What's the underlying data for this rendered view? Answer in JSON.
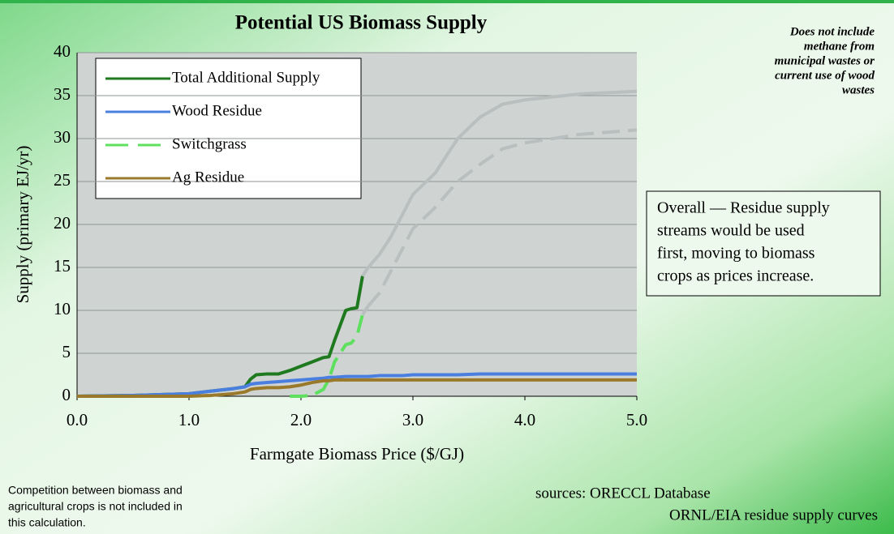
{
  "chart_data": {
    "type": "line",
    "title": "Potential US Biomass Supply",
    "xlabel": "Farmgate Biomass Price ($/GJ)",
    "ylabel": "Supply (primary EJ/yr)",
    "x": [
      0,
      0.5,
      1.0,
      1.2,
      1.4,
      1.5,
      1.55,
      1.6,
      1.7,
      1.8,
      1.9,
      2.0,
      2.1,
      2.2,
      2.25,
      2.3,
      2.4,
      2.45,
      2.5,
      2.55,
      2.6,
      2.7,
      2.8,
      2.9,
      3.0,
      3.2,
      3.4,
      3.6,
      3.8,
      4.0,
      4.5,
      5.0
    ],
    "series": [
      {
        "name": "Total Additional Supply",
        "color": "#1f7a1f",
        "faded_color": "#b9bebe",
        "faded_after": 2.55,
        "dashed": false,
        "values": [
          0,
          0.1,
          0.3,
          0.6,
          0.9,
          1.1,
          2,
          2.5,
          2.6,
          2.6,
          3,
          3.5,
          4,
          4.5,
          4.6,
          6.5,
          10,
          10.2,
          10.3,
          14,
          15,
          16.5,
          18.5,
          21,
          23.5,
          26,
          30,
          32.5,
          34,
          34.5,
          35.2,
          35.5
        ]
      },
      {
        "name": "Wood Residue",
        "color": "#4a7fe0",
        "dashed": false,
        "values": [
          0,
          0.1,
          0.3,
          0.6,
          0.9,
          1.1,
          1.4,
          1.5,
          1.6,
          1.7,
          1.8,
          1.9,
          2.0,
          2.1,
          2.2,
          2.2,
          2.3,
          2.3,
          2.3,
          2.3,
          2.3,
          2.4,
          2.4,
          2.4,
          2.5,
          2.5,
          2.5,
          2.6,
          2.6,
          2.6,
          2.6,
          2.6
        ]
      },
      {
        "name": "Switchgrass",
        "color": "#5ee05e",
        "faded_color": "#b9bebe",
        "faded_after": 2.55,
        "dashed": true,
        "values": [
          null,
          null,
          null,
          null,
          null,
          null,
          null,
          null,
          null,
          null,
          0,
          0,
          0.1,
          0.8,
          2,
          4,
          6,
          6.2,
          7,
          9.5,
          10.5,
          12,
          14.5,
          17,
          19.5,
          22,
          25,
          27,
          28.8,
          29.5,
          30.5,
          31
        ]
      },
      {
        "name": "Ag Residue",
        "color": "#9a7a2a",
        "dashed": false,
        "values": [
          0,
          0,
          0,
          0.1,
          0.3,
          0.5,
          0.8,
          0.9,
          1.0,
          1.0,
          1.1,
          1.3,
          1.6,
          1.8,
          1.8,
          1.9,
          1.9,
          1.9,
          1.9,
          1.9,
          1.9,
          1.9,
          1.9,
          1.9,
          1.9,
          1.9,
          1.9,
          1.9,
          1.9,
          1.9,
          1.9,
          1.9
        ]
      }
    ],
    "xlim": [
      0,
      5
    ],
    "xticks": [
      {
        "value": 0,
        "label": "0.0"
      },
      {
        "value": 1,
        "label": "1.0"
      },
      {
        "value": 2,
        "label": "2.0"
      },
      {
        "value": 3,
        "label": "3.0"
      },
      {
        "value": 4,
        "label": "4.0"
      },
      {
        "value": 5,
        "label": "5.0"
      }
    ],
    "ylim": [
      0,
      40
    ],
    "yticks": [
      0,
      5,
      10,
      15,
      20,
      25,
      30,
      35,
      40
    ],
    "grid": true,
    "legend": "upper left",
    "note_top_right": [
      "Does not include",
      "methane from",
      "municipal wastes or",
      "current use of wood",
      "wastes"
    ],
    "note_box": [
      "Overall — Residue supply",
      "streams would be used",
      "first, moving to biomass",
      "crops as prices increase."
    ],
    "note_bottom_left": [
      "Competition between biomass and",
      "agricultural crops is not included in",
      "this calculation."
    ],
    "sources": [
      "sources: ORECCL Database",
      "ORNL/EIA residue supply curves"
    ]
  }
}
